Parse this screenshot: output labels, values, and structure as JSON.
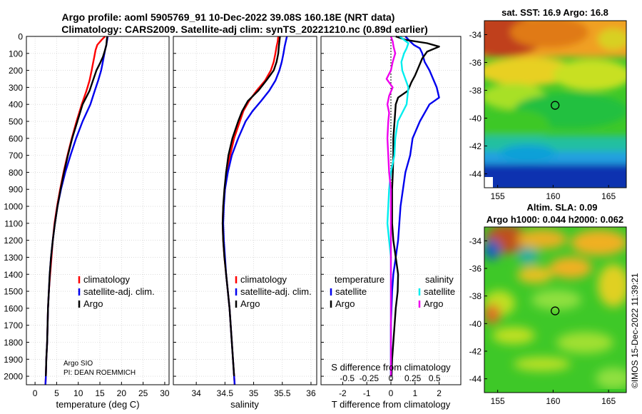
{
  "header": {
    "line1": "Argo profile: aoml 5905769_91 10-Dec-2022 39.08S 160.18E (NRT data)",
    "line2": "Climatology: CARS2009. Satellite-adj clim: synTS_20221210.nc (0.89d earlier)"
  },
  "credit": {
    "name": "Argo SIO",
    "pi": "PI: DEAN ROEMMICH"
  },
  "timestamp": "©IMOS 15-Dec-2022 11:39:21",
  "colors": {
    "climatology": "#ff0000",
    "satellite": "#0000ee",
    "argo": "#000000",
    "s_satellite": "#00eeee",
    "s_argo": "#ee00ee",
    "grid": "#c8c8c8"
  },
  "chart_data": [
    {
      "id": "temperature",
      "type": "line",
      "xlabel": "temperature (deg C)",
      "ylabel": "",
      "xlim": [
        -2,
        31
      ],
      "ylim": [
        0,
        2050
      ],
      "xticks": [
        0,
        5,
        10,
        15,
        20,
        25,
        30
      ],
      "yticks": [
        0,
        100,
        200,
        300,
        400,
        500,
        600,
        700,
        800,
        900,
        1000,
        1100,
        1200,
        1300,
        1400,
        1500,
        1600,
        1700,
        1800,
        1900,
        2000
      ],
      "legend": [
        "climatology",
        "satellite-adj. clim.",
        "Argo"
      ],
      "series": [
        {
          "name": "climatology",
          "color_key": "climatology",
          "depth": [
            0,
            20,
            50,
            80,
            120,
            160,
            200,
            260,
            320,
            400,
            500,
            600,
            700,
            800,
            900,
            1000,
            1100,
            1200,
            1300,
            1400,
            1500,
            1600,
            1700,
            1800,
            1900,
            2000,
            2050
          ],
          "values": [
            16.2,
            15.4,
            14.4,
            14.0,
            13.7,
            13.4,
            13.1,
            12.6,
            11.9,
            10.8,
            9.6,
            8.5,
            7.5,
            6.6,
            5.8,
            5.1,
            4.5,
            4.1,
            3.8,
            3.5,
            3.2,
            3.0,
            2.9,
            2.8,
            2.6,
            2.5,
            2.4
          ]
        },
        {
          "name": "satellite-adj. clim.",
          "color_key": "satellite",
          "depth": [
            0,
            20,
            50,
            80,
            120,
            160,
            200,
            260,
            320,
            400,
            500,
            600,
            700,
            800,
            900,
            1000,
            1100,
            1200,
            1300,
            1400,
            1500,
            1600,
            1700,
            1800,
            1900,
            2000,
            2050
          ],
          "values": [
            16.8,
            16.7,
            16.5,
            16.2,
            15.9,
            15.6,
            15.3,
            14.6,
            13.8,
            12.8,
            11.0,
            9.5,
            8.2,
            7.0,
            6.0,
            5.2,
            4.6,
            4.1,
            3.7,
            3.4,
            3.2,
            3.0,
            2.9,
            2.8,
            2.6,
            2.5,
            2.4
          ]
        },
        {
          "name": "Argo",
          "color_key": "argo",
          "depth": [
            0,
            20,
            50,
            80,
            120,
            160,
            200,
            260,
            320,
            400,
            500,
            600,
            700,
            800,
            900,
            1000,
            1100,
            1200,
            1300,
            1400,
            1500,
            1600,
            1700,
            1800,
            1900,
            2000
          ],
          "values": [
            16.7,
            16.6,
            16.5,
            16.2,
            15.7,
            15.0,
            14.2,
            13.4,
            12.6,
            11.0,
            9.8,
            8.6,
            7.6,
            6.7,
            5.9,
            5.2,
            4.6,
            4.1,
            3.7,
            3.4,
            3.2,
            3.0,
            2.9,
            2.8,
            2.6,
            2.5
          ]
        }
      ]
    },
    {
      "id": "salinity",
      "type": "line",
      "xlabel": "salinity",
      "ylabel": "",
      "xlim": [
        33.6,
        36.1
      ],
      "ylim": [
        0,
        2050
      ],
      "xticks": [
        34,
        34.5,
        35,
        35.5,
        36
      ],
      "legend": [
        "climatology",
        "satellite-adj. clim.",
        "Argo"
      ],
      "series": [
        {
          "name": "climatology",
          "color_key": "climatology",
          "depth": [
            0,
            30,
            60,
            100,
            150,
            200,
            260,
            320,
            380,
            440,
            500,
            600,
            700,
            800,
            900,
            1000,
            1100,
            1200,
            1300,
            1400,
            1500,
            1600,
            1700,
            1800,
            1900,
            2000,
            2050
          ],
          "values": [
            35.43,
            35.42,
            35.4,
            35.38,
            35.35,
            35.3,
            35.2,
            35.05,
            34.92,
            34.82,
            34.76,
            34.66,
            34.59,
            34.53,
            34.5,
            34.47,
            34.46,
            34.47,
            34.49,
            34.52,
            34.55,
            34.58,
            34.6,
            34.62,
            34.64,
            34.66,
            34.67
          ]
        },
        {
          "name": "satellite-adj. clim.",
          "color_key": "satellite",
          "depth": [
            0,
            30,
            60,
            100,
            150,
            200,
            260,
            320,
            380,
            440,
            500,
            600,
            700,
            800,
            900,
            1000,
            1100,
            1200,
            1300,
            1400,
            1500,
            1600,
            1700,
            1800,
            1900,
            2000,
            2050
          ],
          "values": [
            35.58,
            35.56,
            35.54,
            35.52,
            35.49,
            35.45,
            35.38,
            35.27,
            35.13,
            34.98,
            34.86,
            34.73,
            34.62,
            34.55,
            34.5,
            34.48,
            34.47,
            34.48,
            34.5,
            34.52,
            34.55,
            34.58,
            34.6,
            34.62,
            34.64,
            34.66,
            34.67
          ]
        },
        {
          "name": "Argo",
          "color_key": "argo",
          "depth": [
            0,
            30,
            60,
            100,
            150,
            200,
            260,
            320,
            380,
            440,
            500,
            600,
            700,
            800,
            900,
            1000,
            1100,
            1200,
            1300,
            1400,
            1500,
            1600,
            1700,
            1800,
            1900,
            2000
          ],
          "values": [
            35.46,
            35.45,
            35.44,
            35.43,
            35.4,
            35.35,
            35.22,
            35.08,
            34.9,
            34.8,
            34.73,
            34.63,
            34.56,
            34.52,
            34.49,
            34.47,
            34.46,
            34.47,
            34.49,
            34.52,
            34.55,
            34.58,
            34.6,
            34.62,
            34.64,
            34.66
          ]
        }
      ]
    },
    {
      "id": "difference",
      "type": "line",
      "xlabel": "T difference from climatology",
      "top_label": "S difference from climatology",
      "xlim": [
        -2.9,
        2.9
      ],
      "ylim": [
        0,
        2050
      ],
      "xticks": [
        -2,
        -1,
        0,
        1,
        2
      ],
      "s_ticks": [
        -0.5,
        -0.25,
        0,
        0.25,
        0.5
      ],
      "s_tick_labels": [
        "-0.5",
        "-0.25",
        "0",
        "0.25",
        "0.5"
      ],
      "legend_temperature": {
        "title": "temperature",
        "items": [
          "satellite",
          "Argo"
        ]
      },
      "legend_salinity": {
        "title": "salinity",
        "items": [
          "satellite",
          "Argo"
        ]
      },
      "series": [
        {
          "name": "T satellite",
          "color_key": "satellite",
          "depth": [
            0,
            30,
            50,
            70,
            100,
            150,
            200,
            300,
            360,
            400,
            500,
            600,
            700,
            800,
            900,
            1000,
            1100,
            1200,
            1300,
            1400,
            1500,
            1700,
            1900,
            2000
          ],
          "values": [
            0.6,
            0.8,
            0.95,
            1.2,
            1.3,
            1.4,
            1.6,
            1.9,
            2.0,
            1.6,
            1.2,
            0.9,
            0.8,
            0.6,
            0.5,
            0.4,
            0.35,
            0.3,
            0.2,
            0.1,
            0.05,
            0,
            0,
            0
          ]
        },
        {
          "name": "T Argo",
          "color_key": "argo",
          "depth": [
            0,
            20,
            40,
            60,
            90,
            130,
            180,
            230,
            270,
            320,
            360,
            400,
            500,
            600,
            700,
            800,
            900,
            1000,
            1100,
            1200,
            1300,
            1400,
            1500,
            1600,
            1700,
            1800,
            1900,
            2000
          ],
          "values": [
            0.2,
            0.6,
            1.5,
            2.0,
            1.5,
            1.3,
            1.15,
            1.0,
            0.85,
            0.7,
            0.3,
            0.2,
            0.15,
            0.1,
            0.1,
            0.08,
            0.05,
            0.05,
            0.05,
            0.1,
            0.2,
            0.3,
            0.28,
            0.2,
            0.15,
            0.1,
            0.05,
            0.03
          ]
        },
        {
          "name": "S satellite",
          "color_key": "s_satellite",
          "depth": [
            0,
            20,
            40,
            70,
            100,
            150,
            200,
            300,
            400,
            500,
            600,
            700,
            800,
            900,
            1000,
            1100,
            1200,
            1300,
            1400,
            1500,
            1700,
            1900,
            2000
          ],
          "values": [
            0.1,
            0.15,
            0.2,
            0.18,
            0.15,
            0.12,
            0.13,
            0.2,
            0.18,
            0.08,
            0.05,
            0.04,
            0.0,
            -0.02,
            -0.03,
            -0.04,
            -0.02,
            0.0,
            0.0,
            0.0,
            0.0,
            0.0,
            0.0
          ]
        },
        {
          "name": "S Argo",
          "color_key": "s_argo",
          "depth": [
            0,
            30,
            60,
            100,
            150,
            200,
            250,
            300,
            350,
            400,
            450,
            500,
            600,
            700,
            800,
            900,
            1000,
            1100,
            1200,
            1300,
            1400,
            1500,
            1700,
            1900,
            2000
          ],
          "values": [
            0.0,
            0.02,
            0.03,
            0.05,
            0.02,
            0.0,
            -0.05,
            0.02,
            -0.02,
            -0.04,
            -0.02,
            -0.03,
            -0.04,
            -0.03,
            -0.02,
            0.0,
            0.0,
            0.0,
            0.0,
            0.0,
            0.0,
            0.0,
            0.0,
            0.0,
            0.0
          ]
        }
      ]
    },
    {
      "id": "sst_map",
      "type": "heatmap",
      "title": "sat. SST: 16.9 Argo: 16.8",
      "xlim": [
        153.8,
        166.6
      ],
      "ylim": [
        -45,
        -33
      ],
      "xticks": [
        155,
        160,
        165
      ],
      "yticks": [
        -34,
        -36,
        -38,
        -40,
        -42,
        -44
      ],
      "ytick_labels": [
        "-34",
        "-36",
        "-38",
        "-40",
        "-42",
        "-44"
      ],
      "marker": {
        "lon": 160.18,
        "lat": -39.08
      }
    },
    {
      "id": "sla_map",
      "type": "heatmap",
      "title": "Altim. SLA: 0.09",
      "subtitle": "Argo h1000: 0.044 h2000: 0.062",
      "xlim": [
        153.8,
        166.6
      ],
      "ylim": [
        -45,
        -33
      ],
      "xticks": [
        155,
        160,
        165
      ],
      "yticks": [
        -34,
        -36,
        -38,
        -40,
        -42,
        -44
      ],
      "ytick_labels": [
        "-34",
        "-36",
        "-38",
        "-40",
        "-42",
        "-44"
      ],
      "marker": {
        "lon": 160.18,
        "lat": -39.08
      }
    }
  ]
}
